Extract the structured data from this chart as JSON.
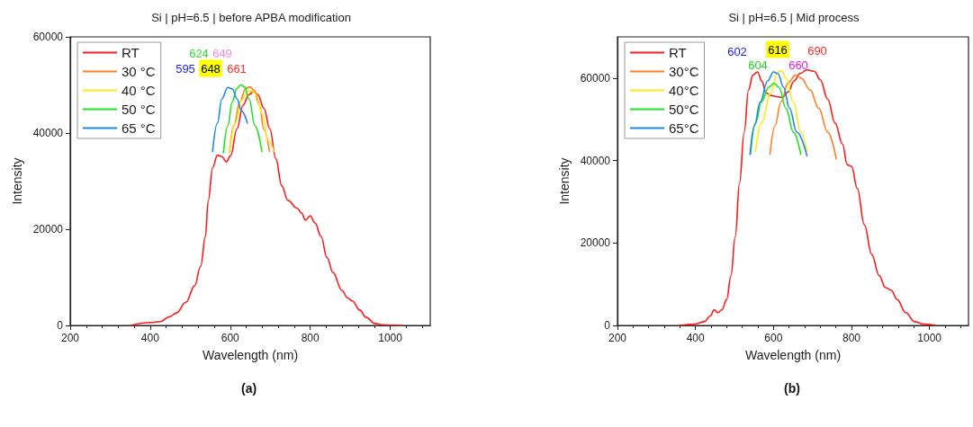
{
  "chart_data": [
    {
      "type": "line",
      "title": "Si | pH=6.5 | before APBA modification",
      "xlabel": "Wavelength (nm)",
      "ylabel": "Intensity",
      "xlim": [
        200,
        1100
      ],
      "xticks": [
        200,
        400,
        600,
        800,
        1000
      ],
      "ylim": [
        0,
        60000
      ],
      "yticks": [
        0,
        20000,
        40000,
        60000
      ],
      "grid": false,
      "legend": "top left",
      "marker": "none",
      "line_style": "solid",
      "annotations": [
        "624",
        "649",
        "595",
        "648",
        "661",
        "(a)"
      ],
      "series": [
        {
          "name": "RT",
          "color": "#ff1a1a",
          "x": [
            352,
            400,
            425,
            448,
            466,
            489,
            511,
            526,
            538,
            545,
            556,
            568,
            579,
            590,
            601,
            617,
            632,
            647,
            658,
            669,
            684,
            699,
            714,
            729,
            744,
            767,
            778,
            788,
            800,
            812,
            827,
            842,
            857,
            879,
            894,
            905,
            924,
            939,
            962,
            984,
            1029
          ],
          "values": [
            0,
            600,
            800,
            1800,
            2600,
            4800,
            8200,
            12300,
            18500,
            25900,
            32800,
            35400,
            35100,
            34000,
            35300,
            40900,
            45800,
            48000,
            48600,
            48000,
            45200,
            40900,
            34700,
            29000,
            26000,
            24400,
            23400,
            21900,
            22800,
            21300,
            18500,
            14100,
            11000,
            7300,
            5700,
            5100,
            3200,
            1700,
            400,
            100,
            0
          ]
        },
        {
          "name": "30 °C",
          "color": "#ff7f27",
          "x": [
            598,
            609,
            624,
            639,
            649,
            660,
            673,
            684,
            698
          ],
          "values": [
            35900,
            41500,
            46500,
            49300,
            49600,
            48900,
            45800,
            40800,
            36200
          ]
        },
        {
          "name": "40 °C",
          "color": "#ffe81a",
          "x": [
            598,
            613,
            628,
            643,
            654,
            665,
            680,
            695,
            709
          ],
          "values": [
            35900,
            42100,
            46800,
            48600,
            48800,
            48000,
            43900,
            38400,
            36200
          ]
        },
        {
          "name": "50 °C",
          "color": "#22e022",
          "x": [
            583,
            594,
            605,
            617,
            626,
            636,
            647,
            662,
            679
          ],
          "values": [
            35900,
            41500,
            46500,
            49300,
            50000,
            49600,
            47100,
            41500,
            36200
          ]
        },
        {
          "name": "65 °C",
          "color": "#1e88e5",
          "x": [
            556,
            568,
            579,
            594,
            605,
            617,
            628,
            643
          ],
          "values": [
            36200,
            42100,
            47100,
            49500,
            49200,
            47100,
            44600,
            42100
          ]
        }
      ]
    },
    {
      "type": "line",
      "title": "Si | pH=6.5 | Mid process",
      "xlabel": "Wavelength (nm)",
      "ylabel": "Intensity",
      "xlim": [
        200,
        1100
      ],
      "xticks": [
        200,
        400,
        600,
        800,
        1000
      ],
      "ylim": [
        0,
        70000
      ],
      "yticks": [
        0,
        20000,
        40000,
        60000
      ],
      "grid": false,
      "legend": "top left",
      "marker": "none",
      "line_style": "solid",
      "annotations": [
        "602",
        "616",
        "690",
        "604",
        "660",
        "(b)"
      ],
      "series": [
        {
          "name": "RT",
          "color": "#ff1a1a",
          "x": [
            359,
            397,
            423,
            438,
            448,
            457,
            468,
            480,
            491,
            502,
            513,
            525,
            536,
            547,
            559,
            570,
            581,
            593,
            608,
            623,
            638,
            653,
            668,
            686,
            705,
            720,
            739,
            758,
            777,
            789,
            800,
            815,
            833,
            852,
            871,
            887,
            902,
            917,
            939,
            962,
            985,
            1015
          ],
          "values": [
            0,
            300,
            900,
            2300,
            3800,
            3100,
            3800,
            6300,
            12100,
            21500,
            34600,
            46900,
            57100,
            60700,
            61500,
            59300,
            56400,
            55800,
            55500,
            55300,
            56700,
            59300,
            61100,
            62000,
            61600,
            59600,
            54900,
            49100,
            44000,
            39000,
            38600,
            33200,
            24400,
            17200,
            12100,
            9200,
            8500,
            6300,
            3100,
            900,
            300,
            0
          ]
        },
        {
          "name": "30°C",
          "color": "#ff7f27",
          "x": [
            591,
            604,
            619,
            638,
            656,
            671,
            694,
            716,
            739,
            761
          ],
          "values": [
            41500,
            48400,
            54200,
            58900,
            60700,
            60000,
            57100,
            52700,
            46900,
            40400
          ]
        },
        {
          "name": "40°C",
          "color": "#ffe81a",
          "x": [
            554,
            569,
            593,
            611,
            621,
            632,
            651,
            670,
            686
          ],
          "values": [
            42200,
            49100,
            56400,
            61500,
            61800,
            60000,
            54200,
            46900,
            42200
          ]
        },
        {
          "name": "50°C",
          "color": "#22e022",
          "x": [
            541,
            554,
            569,
            588,
            601,
            614,
            632,
            651,
            670
          ],
          "values": [
            41500,
            49100,
            54200,
            57800,
            58700,
            57800,
            52700,
            46900,
            41500
          ]
        },
        {
          "name": "65°C",
          "color": "#1e88e5",
          "x": [
            540,
            551,
            566,
            585,
            600,
            611,
            626,
            641,
            660,
            686
          ],
          "values": [
            41500,
            48400,
            54200,
            59300,
            61500,
            61100,
            57800,
            52700,
            46900,
            41100
          ]
        }
      ]
    }
  ]
}
